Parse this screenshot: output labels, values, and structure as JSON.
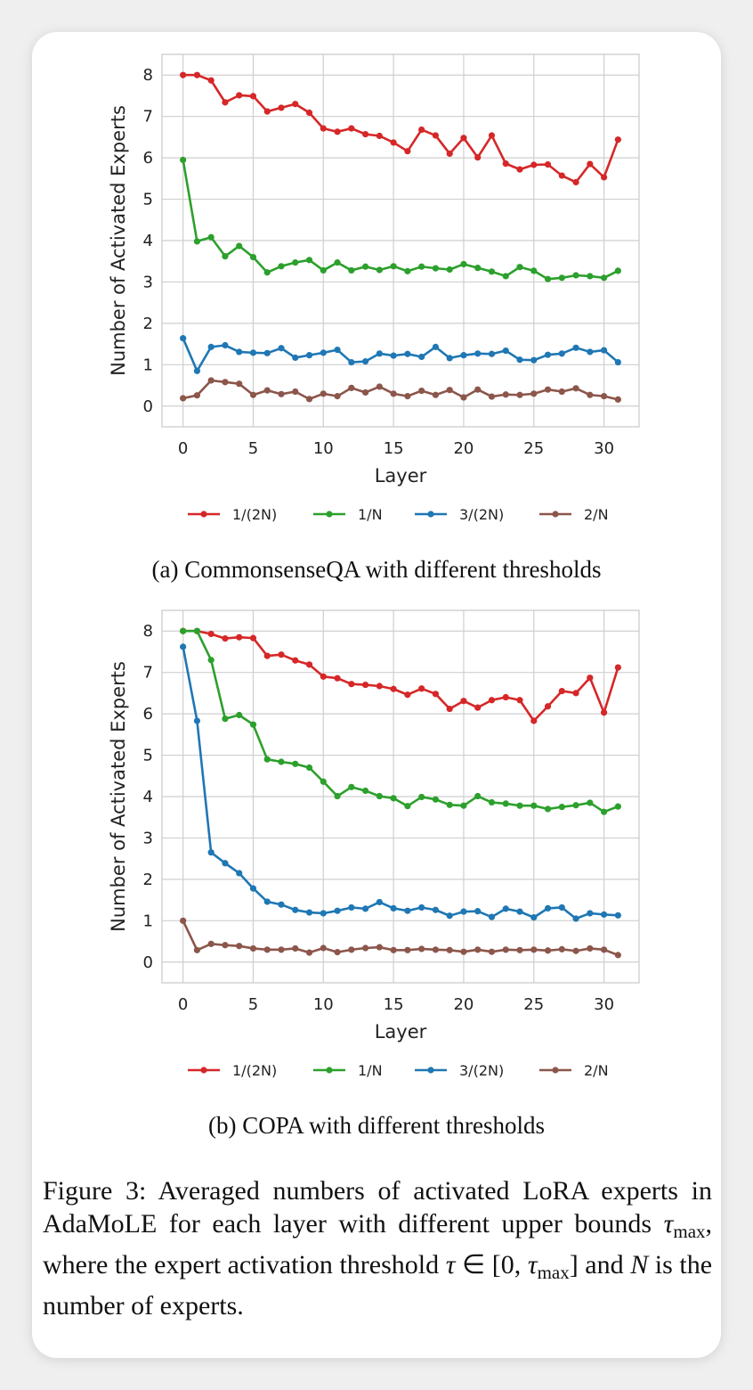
{
  "chart_data": [
    {
      "type": "line",
      "xlabel": "Layer",
      "ylabel": "Number of Activated Experts",
      "xlim": [
        -1.5,
        32.5
      ],
      "ylim": [
        -0.5,
        8.5
      ],
      "xticks": [
        0,
        5,
        10,
        15,
        20,
        25,
        30
      ],
      "yticks": [
        0,
        1,
        2,
        3,
        4,
        5,
        6,
        7,
        8
      ],
      "grid": true,
      "legend": "below",
      "x": [
        0,
        1,
        2,
        3,
        4,
        5,
        6,
        7,
        8,
        9,
        10,
        11,
        12,
        13,
        14,
        15,
        16,
        17,
        18,
        19,
        20,
        21,
        22,
        23,
        24,
        25,
        26,
        27,
        28,
        29,
        30,
        31
      ],
      "series": [
        {
          "name": "1/(2N)",
          "color": "#d62728",
          "values": [
            8.0,
            8.0,
            7.87,
            7.34,
            7.51,
            7.49,
            7.12,
            7.21,
            7.3,
            7.09,
            6.71,
            6.63,
            6.71,
            6.57,
            6.53,
            6.37,
            6.16,
            6.68,
            6.54,
            6.1,
            6.48,
            6.01,
            6.54,
            5.86,
            5.72,
            5.83,
            5.84,
            5.57,
            5.41,
            5.85,
            5.53,
            6.44
          ]
        },
        {
          "name": "1/N",
          "color": "#2ca02c",
          "values": [
            5.95,
            3.98,
            4.08,
            3.62,
            3.87,
            3.6,
            3.23,
            3.38,
            3.47,
            3.53,
            3.28,
            3.47,
            3.28,
            3.37,
            3.29,
            3.38,
            3.26,
            3.37,
            3.33,
            3.3,
            3.43,
            3.34,
            3.25,
            3.14,
            3.36,
            3.27,
            3.07,
            3.1,
            3.16,
            3.14,
            3.1,
            3.27
          ]
        },
        {
          "name": "3/(2N)",
          "color": "#1f77b4",
          "values": [
            1.64,
            0.85,
            1.43,
            1.47,
            1.31,
            1.29,
            1.28,
            1.4,
            1.17,
            1.23,
            1.29,
            1.36,
            1.06,
            1.08,
            1.27,
            1.22,
            1.26,
            1.19,
            1.43,
            1.16,
            1.23,
            1.27,
            1.26,
            1.34,
            1.12,
            1.11,
            1.24,
            1.27,
            1.41,
            1.31,
            1.35,
            1.06
          ]
        },
        {
          "name": "2/N",
          "color": "#8c564b",
          "values": [
            0.19,
            0.26,
            0.62,
            0.58,
            0.54,
            0.27,
            0.38,
            0.29,
            0.35,
            0.17,
            0.3,
            0.24,
            0.44,
            0.33,
            0.47,
            0.3,
            0.24,
            0.37,
            0.27,
            0.39,
            0.21,
            0.4,
            0.23,
            0.28,
            0.27,
            0.3,
            0.4,
            0.35,
            0.43,
            0.27,
            0.24,
            0.16
          ]
        }
      ]
    },
    {
      "type": "line",
      "xlabel": "Layer",
      "ylabel": "Number of Activated Experts",
      "xlim": [
        -1.5,
        32.5
      ],
      "ylim": [
        -0.5,
        8.5
      ],
      "xticks": [
        0,
        5,
        10,
        15,
        20,
        25,
        30
      ],
      "yticks": [
        0,
        1,
        2,
        3,
        4,
        5,
        6,
        7,
        8
      ],
      "grid": true,
      "legend": "below",
      "x": [
        0,
        1,
        2,
        3,
        4,
        5,
        6,
        7,
        8,
        9,
        10,
        11,
        12,
        13,
        14,
        15,
        16,
        17,
        18,
        19,
        20,
        21,
        22,
        23,
        24,
        25,
        26,
        27,
        28,
        29,
        30,
        31
      ],
      "series": [
        {
          "name": "1/(2N)",
          "color": "#d62728",
          "values": [
            8.0,
            8.0,
            7.93,
            7.82,
            7.85,
            7.83,
            7.4,
            7.43,
            7.29,
            7.19,
            6.9,
            6.86,
            6.72,
            6.7,
            6.67,
            6.6,
            6.46,
            6.61,
            6.48,
            6.12,
            6.31,
            6.15,
            6.33,
            6.4,
            6.33,
            5.83,
            6.18,
            6.55,
            6.5,
            6.87,
            6.03,
            7.12
          ]
        },
        {
          "name": "1/N",
          "color": "#2ca02c",
          "values": [
            8.0,
            8.0,
            7.3,
            5.88,
            5.97,
            5.74,
            4.9,
            4.84,
            4.79,
            4.7,
            4.36,
            4.01,
            4.23,
            4.14,
            4.01,
            3.96,
            3.77,
            3.99,
            3.93,
            3.8,
            3.78,
            4.01,
            3.86,
            3.83,
            3.78,
            3.78,
            3.7,
            3.75,
            3.79,
            3.85,
            3.63,
            3.76
          ]
        },
        {
          "name": "3/(2N)",
          "color": "#1f77b4",
          "values": [
            7.62,
            5.83,
            2.65,
            2.39,
            2.15,
            1.78,
            1.46,
            1.39,
            1.26,
            1.2,
            1.18,
            1.24,
            1.32,
            1.29,
            1.45,
            1.3,
            1.24,
            1.32,
            1.26,
            1.12,
            1.22,
            1.23,
            1.09,
            1.29,
            1.22,
            1.08,
            1.3,
            1.32,
            1.05,
            1.18,
            1.15,
            1.13
          ]
        },
        {
          "name": "2/N",
          "color": "#8c564b",
          "values": [
            1.0,
            0.29,
            0.44,
            0.41,
            0.39,
            0.33,
            0.3,
            0.3,
            0.33,
            0.23,
            0.34,
            0.24,
            0.3,
            0.34,
            0.36,
            0.29,
            0.29,
            0.32,
            0.3,
            0.29,
            0.25,
            0.3,
            0.25,
            0.3,
            0.29,
            0.3,
            0.28,
            0.31,
            0.27,
            0.33,
            0.3,
            0.17
          ]
        }
      ]
    }
  ],
  "captions": {
    "a": "(a) CommonsenseQA with different thresholds",
    "b": "(b) COPA with different thresholds"
  },
  "figure": {
    "label": "Figure 3:",
    "text1": "Averaged numbers of activated LoRA experts in AdaMoLE for each layer with different upper bounds",
    "tau": "τ",
    "max": "max",
    "text2": ", where the expert activation threshold",
    "interval": "∈ [0,",
    "text3": "] and",
    "n": "N",
    "text4": "is the number of experts."
  }
}
